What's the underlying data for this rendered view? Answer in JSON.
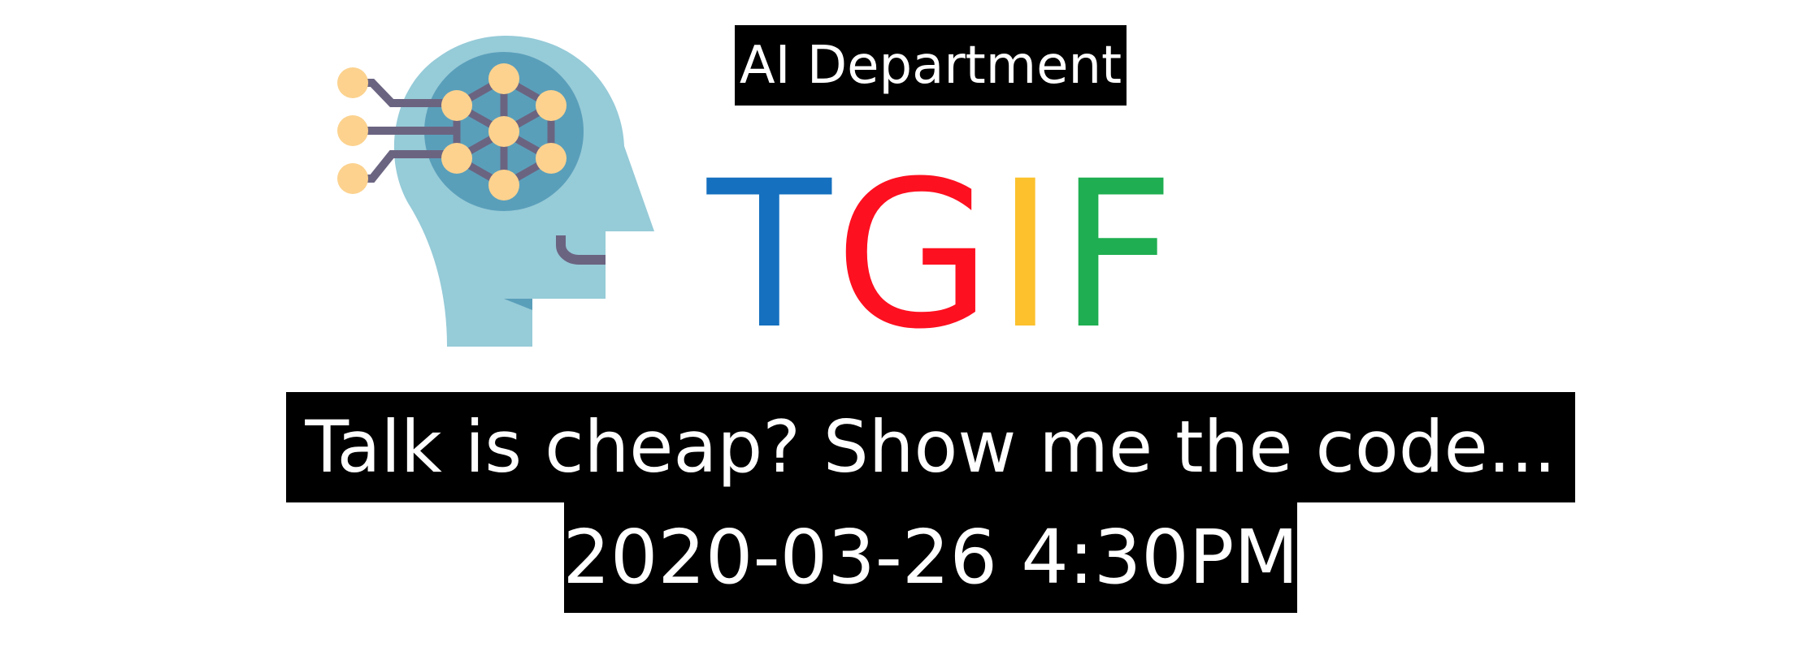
{
  "department": "AI Department",
  "title_letters": [
    {
      "char": "T",
      "color": "#1570bf"
    },
    {
      "char": "G",
      "color": "#fd1020"
    },
    {
      "char": "I",
      "color": "#fcc12d"
    },
    {
      "char": "F",
      "color": "#1fae51"
    }
  ],
  "tagline": "Talk is cheap? Show me the code...",
  "datetime": "2020-03-26 4:30PM",
  "logo": {
    "icon": "ai-head-brain-icon",
    "head_color": "#96cbd8",
    "brain_color": "#5a9fba",
    "node_color": "#fcd28e",
    "wire_color": "#6b6481"
  }
}
